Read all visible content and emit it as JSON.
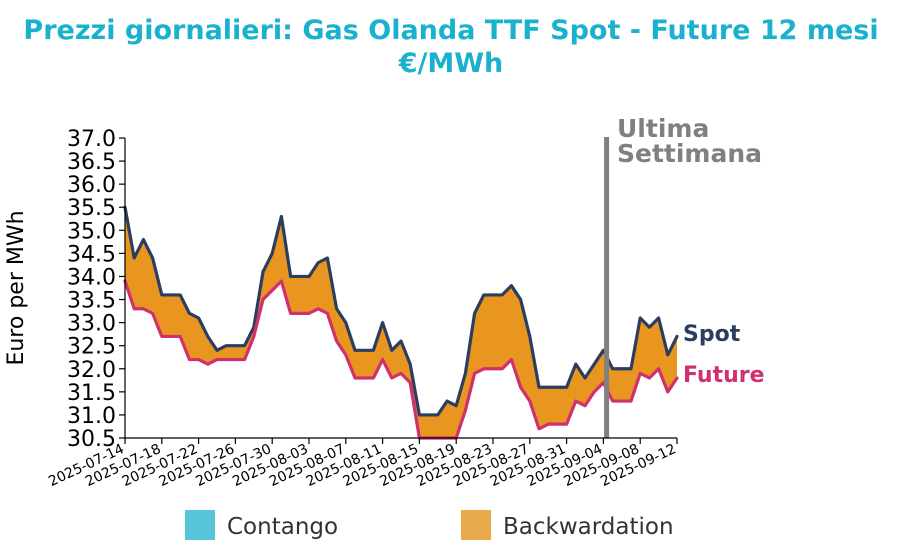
{
  "chart_data": {
    "type": "line",
    "title": [
      "Prezzi giornalieri: Gas Olanda TTF Spot - Future 12 mesi",
      "€/MWh"
    ],
    "ylabel": "Euro per MWh",
    "xlabel": "",
    "ylim": [
      30.5,
      37.0
    ],
    "yticks": [
      "37.0",
      "36.5",
      "36.0",
      "35.5",
      "35.0",
      "34.5",
      "34.0",
      "33.5",
      "33.0",
      "32.5",
      "32.0",
      "31.5",
      "31.0",
      "30.5"
    ],
    "x": [
      "2025-07-14",
      "2025-07-15",
      "2025-07-16",
      "2025-07-17",
      "2025-07-18",
      "2025-07-19",
      "2025-07-20",
      "2025-07-21",
      "2025-07-22",
      "2025-07-23",
      "2025-07-24",
      "2025-07-25",
      "2025-07-26",
      "2025-07-27",
      "2025-07-28",
      "2025-07-29",
      "2025-07-30",
      "2025-07-31",
      "2025-08-01",
      "2025-08-02",
      "2025-08-03",
      "2025-08-04",
      "2025-08-05",
      "2025-08-06",
      "2025-08-07",
      "2025-08-08",
      "2025-08-09",
      "2025-08-10",
      "2025-08-11",
      "2025-08-12",
      "2025-08-13",
      "2025-08-14",
      "2025-08-15",
      "2025-08-16",
      "2025-08-17",
      "2025-08-18",
      "2025-08-19",
      "2025-08-20",
      "2025-08-21",
      "2025-08-22",
      "2025-08-23",
      "2025-08-24",
      "2025-08-25",
      "2025-08-26",
      "2025-08-27",
      "2025-08-28",
      "2025-08-29",
      "2025-08-30",
      "2025-08-31",
      "2025-09-01",
      "2025-09-02",
      "2025-09-03",
      "2025-09-04",
      "2025-09-05",
      "2025-09-06",
      "2025-09-07",
      "2025-09-08",
      "2025-09-09",
      "2025-09-10",
      "2025-09-11",
      "2025-09-12"
    ],
    "xticks": [
      "2025-07-14",
      "2025-07-18",
      "2025-07-22",
      "2025-07-26",
      "2025-07-30",
      "2025-08-03",
      "2025-08-07",
      "2025-08-11",
      "2025-08-15",
      "2025-08-19",
      "2025-08-23",
      "2025-08-27",
      "2025-08-31",
      "2025-09-04",
      "2025-09-08",
      "2025-09-12"
    ],
    "series": [
      {
        "name": "Spot",
        "color": "#2c3e60",
        "values": [
          35.5,
          34.4,
          34.8,
          34.4,
          33.6,
          33.6,
          33.6,
          33.2,
          33.1,
          32.7,
          32.4,
          32.5,
          32.5,
          32.5,
          32.9,
          34.1,
          34.5,
          35.3,
          34.0,
          34.0,
          34.0,
          34.3,
          34.4,
          33.3,
          33.0,
          32.4,
          32.4,
          32.4,
          33.0,
          32.4,
          32.6,
          32.1,
          31.0,
          31.0,
          31.0,
          31.3,
          31.2,
          31.9,
          33.2,
          33.6,
          33.6,
          33.6,
          33.8,
          33.5,
          32.7,
          31.6,
          31.6,
          31.6,
          31.6,
          32.1,
          31.8,
          32.1,
          32.4,
          32.0,
          32.0,
          32.0,
          33.1,
          32.9,
          33.1,
          32.3,
          32.7
        ]
      },
      {
        "name": "Future",
        "color": "#d0306e",
        "values": [
          33.9,
          33.3,
          33.3,
          33.2,
          32.7,
          32.7,
          32.7,
          32.2,
          32.2,
          32.1,
          32.2,
          32.2,
          32.2,
          32.2,
          32.7,
          33.5,
          33.7,
          33.9,
          33.2,
          33.2,
          33.2,
          33.3,
          33.2,
          32.6,
          32.3,
          31.8,
          31.8,
          31.8,
          32.2,
          31.8,
          31.9,
          31.7,
          30.5,
          30.5,
          30.5,
          30.5,
          30.5,
          31.1,
          31.9,
          32.0,
          32.0,
          32.0,
          32.2,
          31.6,
          31.3,
          30.7,
          30.8,
          30.8,
          30.8,
          31.3,
          31.2,
          31.5,
          31.7,
          31.3,
          31.3,
          31.3,
          31.9,
          31.8,
          32.0,
          31.5,
          31.8
        ]
      }
    ],
    "fill_colors": {
      "contango": "#56c5d9",
      "backwardation": "#e8961f"
    },
    "annotation": {
      "label": [
        "Ultima",
        "Settimana"
      ],
      "x": "2025-09-05",
      "color": "#808080"
    },
    "legend": [
      {
        "label": "Contango",
        "color": "#56c5d9"
      },
      {
        "label": "Backwardation",
        "color": "#e8a94a"
      }
    ],
    "legend_placement": "bottom",
    "grid": false
  }
}
